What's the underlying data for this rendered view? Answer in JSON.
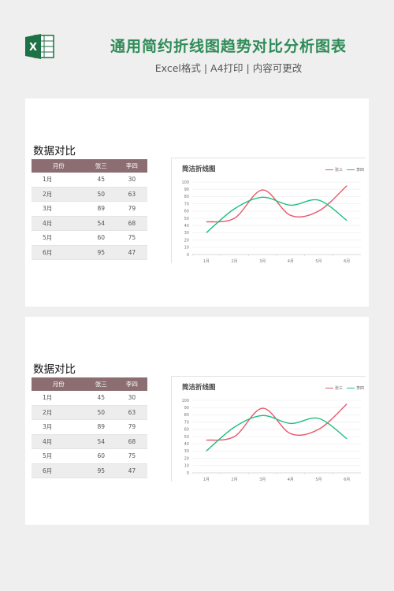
{
  "header": {
    "title": "通用简约折线图趋势对比分析图表",
    "subtitle": "Excel格式 | A4打印 | 内容可更改",
    "logo_letter": "X",
    "logo_icon": "excel-icon",
    "title_color": "#2e8b57"
  },
  "sheets": [
    {
      "section_title": "数据对比",
      "table": {
        "headers": [
          "月份",
          "张三",
          "李四"
        ],
        "rows": [
          [
            "1月",
            "45",
            "30"
          ],
          [
            "2月",
            "50",
            "63"
          ],
          [
            "3月",
            "89",
            "79"
          ],
          [
            "4月",
            "54",
            "68"
          ],
          [
            "5月",
            "60",
            "75"
          ],
          [
            "6月",
            "95",
            "47"
          ]
        ]
      },
      "chart_title": "简洁折线图"
    },
    {
      "section_title": "数据对比",
      "table": {
        "headers": [
          "月份",
          "张三",
          "李四"
        ],
        "rows": [
          [
            "1月",
            "45",
            "30"
          ],
          [
            "2月",
            "50",
            "63"
          ],
          [
            "3月",
            "89",
            "79"
          ],
          [
            "4月",
            "54",
            "68"
          ],
          [
            "5月",
            "60",
            "75"
          ],
          [
            "6月",
            "95",
            "47"
          ]
        ]
      },
      "chart_title": "简洁折线图"
    }
  ],
  "chart_data": [
    {
      "type": "line",
      "title": "简洁折线图",
      "categories": [
        "1月",
        "2月",
        "3月",
        "4月",
        "5月",
        "6月"
      ],
      "series": [
        {
          "name": "张三",
          "values": [
            45,
            50,
            89,
            54,
            60,
            95
          ],
          "color": "#e8566c"
        },
        {
          "name": "李四",
          "values": [
            30,
            63,
            79,
            68,
            75,
            47
          ],
          "color": "#1fbf7f"
        }
      ],
      "yticks": [
        0,
        10,
        20,
        30,
        40,
        50,
        60,
        70,
        80,
        90,
        100
      ],
      "ylim": [
        0,
        100
      ],
      "grid": true,
      "legend": "top-right",
      "smooth": true
    },
    {
      "type": "line",
      "title": "简洁折线图",
      "categories": [
        "1月",
        "2月",
        "3月",
        "4月",
        "5月",
        "6月"
      ],
      "series": [
        {
          "name": "张三",
          "values": [
            45,
            50,
            89,
            54,
            60,
            95
          ],
          "color": "#e8566c"
        },
        {
          "name": "李四",
          "values": [
            30,
            63,
            79,
            68,
            75,
            47
          ],
          "color": "#1fbf7f"
        }
      ],
      "yticks": [
        0,
        10,
        20,
        30,
        40,
        50,
        60,
        70,
        80,
        90,
        100
      ],
      "ylim": [
        0,
        100
      ],
      "grid": true,
      "legend": "top-right",
      "smooth": true
    }
  ]
}
